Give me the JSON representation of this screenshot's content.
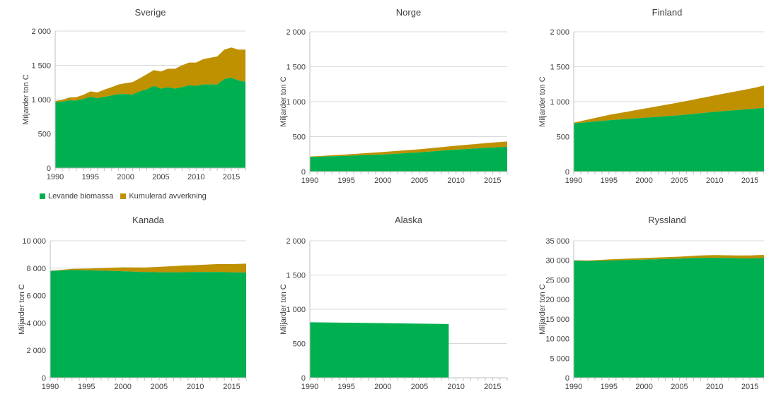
{
  "colors": {
    "levande": "#00b050",
    "kumulerad": "#bf9000",
    "grid": "#d9d9d9",
    "axis": "#bfbfbf",
    "text": "#404040"
  },
  "legend": {
    "levande": "Levande biomassa",
    "kumulerad": "Kumulerad avverkning"
  },
  "chart_data": [
    {
      "type": "area",
      "title": "Sverige",
      "ylabel": "Miljarder ton C",
      "ylim": [
        0,
        2000
      ],
      "yticks": [
        0,
        500,
        1000,
        1500,
        2000
      ],
      "ytick_labels": [
        "0",
        "500",
        "1 000",
        "1 500",
        "2 000"
      ],
      "xlim": [
        1990,
        2017
      ],
      "xticks": [
        1990,
        1995,
        2000,
        2005,
        2010,
        2015
      ],
      "xtick_labels": [
        "1990",
        "1995",
        "2000",
        "2005",
        "2010",
        "2015"
      ],
      "grid": true,
      "stacked": true,
      "x": [
        1990,
        1991,
        1992,
        1993,
        1994,
        1995,
        1996,
        1997,
        1998,
        1999,
        2000,
        2001,
        2002,
        2003,
        2004,
        2005,
        2006,
        2007,
        2008,
        2009,
        2010,
        2011,
        2012,
        2013,
        2014,
        2015,
        2016,
        2017
      ],
      "series": [
        {
          "name": "Levande biomassa",
          "values": [
            960,
            970,
            990,
            985,
            1010,
            1040,
            1020,
            1040,
            1060,
            1080,
            1080,
            1075,
            1120,
            1150,
            1200,
            1160,
            1180,
            1160,
            1180,
            1210,
            1200,
            1220,
            1220,
            1220,
            1300,
            1320,
            1280,
            1260
          ]
        },
        {
          "name": "Kumulerad avverkning",
          "values": [
            20,
            25,
            40,
            50,
            60,
            80,
            85,
            105,
            120,
            140,
            160,
            180,
            190,
            220,
            230,
            250,
            270,
            290,
            320,
            330,
            340,
            370,
            390,
            410,
            430,
            440,
            450,
            470
          ]
        }
      ]
    },
    {
      "type": "area",
      "title": "Norge",
      "ylabel": "Miljarder ton C",
      "ylim": [
        0,
        2000
      ],
      "yticks": [
        0,
        500,
        1000,
        1500,
        2000
      ],
      "ytick_labels": [
        "0",
        "500",
        "1 000",
        "1 500",
        "2 000"
      ],
      "xlim": [
        1990,
        2017
      ],
      "xticks": [
        1990,
        1995,
        2000,
        2005,
        2010,
        2015
      ],
      "xtick_labels": [
        "1990",
        "1995",
        "2000",
        "2005",
        "2010",
        "2015"
      ],
      "grid": true,
      "stacked": true,
      "x": [
        1990,
        1995,
        2000,
        2005,
        2010,
        2015,
        2017
      ],
      "series": [
        {
          "name": "Levande biomassa",
          "values": [
            210,
            225,
            245,
            275,
            315,
            345,
            355
          ]
        },
        {
          "name": "Kumulerad avverkning",
          "values": [
            5,
            20,
            35,
            45,
            55,
            70,
            75
          ]
        }
      ]
    },
    {
      "type": "area",
      "title": "Finland",
      "ylabel": "Miljarder ton C",
      "ylim": [
        0,
        2000
      ],
      "yticks": [
        0,
        500,
        1000,
        1500,
        2000
      ],
      "ytick_labels": [
        "0",
        "500",
        "1 000",
        "1 500",
        "2 000"
      ],
      "xlim": [
        1990,
        2017
      ],
      "xticks": [
        1990,
        1995,
        2000,
        2005,
        2010,
        2015
      ],
      "xtick_labels": [
        "1990",
        "1995",
        "2000",
        "2005",
        "2010",
        "2015"
      ],
      "grid": true,
      "stacked": true,
      "x": [
        1990,
        1995,
        2000,
        2005,
        2010,
        2015,
        2017
      ],
      "series": [
        {
          "name": "Levande biomassa",
          "values": [
            690,
            735,
            770,
            805,
            855,
            895,
            910
          ]
        },
        {
          "name": "Kumulerad avverkning",
          "values": [
            10,
            75,
            130,
            185,
            235,
            290,
            320
          ]
        }
      ]
    },
    {
      "type": "area",
      "title": "Kanada",
      "ylabel": "Miljarder ton C",
      "ylim": [
        0,
        10000
      ],
      "yticks": [
        0,
        2000,
        4000,
        6000,
        8000,
        10000
      ],
      "ytick_labels": [
        "0",
        "2 000",
        "4 000",
        "6 000",
        "8 000",
        "10 000"
      ],
      "xlim": [
        1990,
        2017
      ],
      "xticks": [
        1990,
        1995,
        2000,
        2005,
        2010,
        2015
      ],
      "xtick_labels": [
        "1990",
        "1995",
        "2000",
        "2005",
        "2010",
        "2015"
      ],
      "grid": true,
      "stacked": true,
      "x": [
        1990,
        1993,
        1995,
        2000,
        2003,
        2005,
        2008,
        2010,
        2013,
        2015,
        2017
      ],
      "series": [
        {
          "name": "Levande biomassa",
          "values": [
            7800,
            7870,
            7850,
            7780,
            7720,
            7700,
            7700,
            7720,
            7720,
            7700,
            7680
          ]
        },
        {
          "name": "Kumulerad avverkning",
          "values": [
            10,
            80,
            120,
            280,
            330,
            400,
            480,
            500,
            580,
            600,
            650
          ]
        }
      ]
    },
    {
      "type": "area",
      "title": "Alaska",
      "ylabel": "Miljarder ton C",
      "ylim": [
        0,
        2000
      ],
      "yticks": [
        0,
        500,
        1000,
        1500,
        2000
      ],
      "ytick_labels": [
        "0",
        "500",
        "1 000",
        "1 500",
        "2 000"
      ],
      "xlim": [
        1990,
        2017
      ],
      "xticks": [
        1990,
        1995,
        2000,
        2005,
        2010,
        2015
      ],
      "xtick_labels": [
        "1990",
        "1995",
        "2000",
        "2005",
        "2010",
        "2015"
      ],
      "grid": true,
      "stacked": true,
      "x": [
        1990,
        2009
      ],
      "series": [
        {
          "name": "Levande biomassa",
          "values": [
            810,
            785
          ]
        },
        {
          "name": "Kumulerad avverkning",
          "values": [
            0,
            0
          ]
        }
      ]
    },
    {
      "type": "area",
      "title": "Ryssland",
      "ylabel": "Miljarder ton C",
      "ylim": [
        0,
        35000
      ],
      "yticks": [
        0,
        5000,
        10000,
        15000,
        20000,
        25000,
        30000,
        35000
      ],
      "ytick_labels": [
        "0",
        "5 000",
        "10 000",
        "15 000",
        "20 000",
        "25 000",
        "30 000",
        "35 000"
      ],
      "xlim": [
        1990,
        2017
      ],
      "xticks": [
        1990,
        1995,
        2000,
        2005,
        2010,
        2015
      ],
      "xtick_labels": [
        "1990",
        "1995",
        "2000",
        "2005",
        "2010",
        "2015"
      ],
      "grid": true,
      "stacked": true,
      "x": [
        1990,
        1992,
        1995,
        2000,
        2005,
        2008,
        2010,
        2013,
        2015,
        2017
      ],
      "series": [
        {
          "name": "Levande biomassa",
          "values": [
            29900,
            29800,
            29950,
            30200,
            30450,
            30650,
            30700,
            30550,
            30500,
            30600
          ]
        },
        {
          "name": "Kumulerad avverkning",
          "values": [
            100,
            150,
            300,
            400,
            500,
            600,
            650,
            700,
            750,
            800
          ]
        }
      ]
    }
  ]
}
